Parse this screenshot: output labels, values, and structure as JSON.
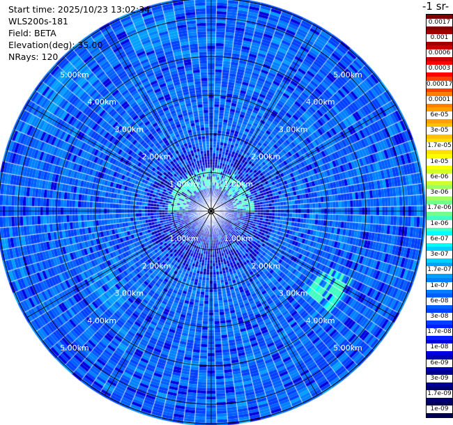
{
  "header": {
    "start_time": "Start time: 2025/10/23 13:02:34",
    "instrument": "WLS200s-181",
    "field": "Field: BETA",
    "elevation": "Elevation(deg): 35.00",
    "nrays": "NRays: 120"
  },
  "colorbar": {
    "title": "-1 sr-",
    "labels": [
      "0.0017",
      "0.001",
      "0.0006",
      "0.0003",
      "0.00017",
      "0.0001",
      "6e-05",
      "3e-05",
      "1.7e-05",
      "1e-05",
      "6e-06",
      "3e-06",
      "1.7e-06",
      "1e-06",
      "6e-07",
      "3e-07",
      "1.7e-07",
      "1e-07",
      "6e-08",
      "3e-08",
      "1.7e-08",
      "1e-08",
      "6e-09",
      "3e-09",
      "1.7e-09",
      "1e-09"
    ],
    "colors": [
      "#800000",
      "#a00000",
      "#c80000",
      "#ff0000",
      "#ff4000",
      "#ff8000",
      "#ffa000",
      "#ffc000",
      "#ffe000",
      "#ffff00",
      "#d0ff30",
      "#a0ff60",
      "#70ff90",
      "#40ffc0",
      "#00ffff",
      "#00d0ff",
      "#00a0ff",
      "#0080ff",
      "#0060ff",
      "#0040ff",
      "#0020ff",
      "#0000e0",
      "#0000b0",
      "#000090",
      "#000070",
      "#000050"
    ]
  },
  "chart_data": {
    "type": "heatmap",
    "projection": "polar-ppi",
    "field": "BETA",
    "elevation_deg": 35.0,
    "nrays": 120,
    "range_rings_km": [
      1,
      2,
      3,
      4,
      5
    ],
    "ring_labels": [
      "1.00km",
      "2.00km",
      "3.00km",
      "4.00km",
      "5.00km"
    ],
    "max_range_km": 5.5,
    "scale": "log",
    "dominant_values": [
      3e-08,
      6e-08,
      1e-07
    ],
    "enhanced_features": [
      {
        "description": "aerosol arc",
        "range_km": [
          0.6,
          1.1
        ],
        "azimuth_deg": [
          270,
          90
        ],
        "value": 1e-06
      },
      {
        "description": "patch",
        "range_km": [
          3.2,
          4.0
        ],
        "azimuth_deg": [
          115,
          130
        ],
        "value": 1e-06
      },
      {
        "description": "patch",
        "range_km": [
          4.5,
          5.3
        ],
        "azimuth_deg": [
          295,
          320
        ],
        "value": 1.7e-07
      },
      {
        "description": "patch",
        "range_km": [
          4.5,
          5.3
        ],
        "azimuth_deg": [
          335,
          350
        ],
        "value": 1.7e-07
      },
      {
        "description": "patch",
        "range_km": [
          3.0,
          3.6
        ],
        "azimuth_deg": [
          225,
          240
        ],
        "value": 1.7e-07
      }
    ]
  }
}
